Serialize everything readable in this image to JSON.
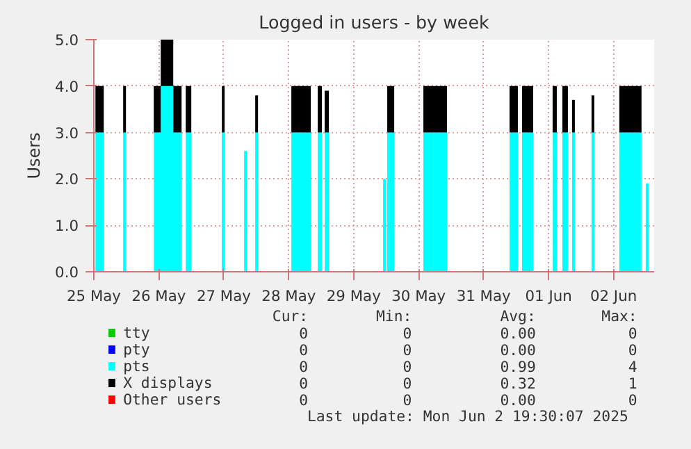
{
  "chart_data": {
    "type": "area",
    "stacked": true,
    "title": "Logged in users - by week",
    "ylabel": "Users",
    "x": [
      "2025-05-25T12:35",
      "2025-05-25T12:35",
      "2025-05-25T15:40",
      "2025-05-25T15:40",
      "2025-05-25T22:50",
      "2025-05-25T22:50",
      "2025-05-25T23:52",
      "2025-05-25T23:52",
      "2025-05-26T10:08",
      "2025-05-26T10:08",
      "2025-05-26T12:43",
      "2025-05-26T12:43",
      "2025-05-26T17:20",
      "2025-05-26T17:20",
      "2025-05-26T20:25",
      "2025-05-26T20:25",
      "2025-05-26T21:57",
      "2025-05-26T21:57",
      "2025-05-27T00:00",
      "2025-05-27T00:00",
      "2025-05-27T11:18",
      "2025-05-27T11:18",
      "2025-05-27T12:19",
      "2025-05-27T12:19",
      "2025-05-27T19:31",
      "2025-05-27T19:31",
      "2025-05-27T20:32",
      "2025-05-27T20:32",
      "2025-05-27T23:37",
      "2025-05-27T23:37",
      "2025-05-28T00:39",
      "2025-05-28T00:39",
      "2025-05-28T12:58",
      "2025-05-28T12:58",
      "2025-05-28T20:09",
      "2025-05-28T20:09",
      "2025-05-28T22:43",
      "2025-05-28T22:43",
      "2025-05-29T00:16",
      "2025-05-29T00:16",
      "2025-05-29T01:17",
      "2025-05-29T01:17",
      "2025-05-29T02:50",
      "2025-05-29T02:50",
      "2025-05-29T22:51",
      "2025-05-29T22:51",
      "2025-05-29T23:53",
      "2025-05-29T23:53",
      "2025-05-30T00:23",
      "2025-05-30T00:23",
      "2025-05-30T02:58",
      "2025-05-30T02:58",
      "2025-05-30T13:44",
      "2025-05-30T13:44",
      "2025-05-30T22:28",
      "2025-05-30T22:28",
      "2025-05-31T21:34",
      "2025-05-31T21:34",
      "2025-06-01T00:39",
      "2025-06-01T00:39",
      "2025-06-01T02:11",
      "2025-06-01T02:11",
      "2025-06-01T06:18",
      "2025-06-01T06:18",
      "2025-06-01T13:29",
      "2025-06-01T13:29",
      "2025-06-01T15:02",
      "2025-06-01T15:02",
      "2025-06-01T17:05",
      "2025-06-01T17:05",
      "2025-06-01T19:08",
      "2025-06-01T19:08",
      "2025-06-01T20:40",
      "2025-06-01T20:40",
      "2025-06-01T21:42",
      "2025-06-01T21:42",
      "2025-06-02T03:52",
      "2025-06-02T03:52",
      "2025-06-02T04:53",
      "2025-06-02T04:53",
      "2025-06-02T14:08",
      "2025-06-02T14:08",
      "2025-06-02T22:20",
      "2025-06-02T22:20",
      "2025-06-02T23:53",
      "2025-06-02T23:53",
      "2025-06-03T00:55",
      "2025-06-03T00:55"
    ],
    "series": [
      {
        "name": "tty",
        "color": "#00cc00",
        "values": [
          null,
          null,
          null,
          null,
          null,
          null,
          null,
          null,
          null,
          null,
          null,
          null,
          null,
          null,
          null,
          null,
          null,
          null,
          null,
          null,
          null,
          null,
          null,
          null,
          null,
          null,
          null,
          null,
          null,
          null,
          null,
          null,
          null,
          null,
          null,
          null,
          null,
          null,
          null,
          null,
          null,
          null,
          null,
          null,
          null,
          null,
          null,
          null,
          null,
          null,
          null,
          null,
          null,
          null,
          null,
          null,
          null,
          null,
          null,
          null,
          null,
          null,
          null,
          null,
          null,
          null,
          null,
          null,
          null,
          null,
          null,
          null,
          null,
          null,
          null,
          null,
          null,
          null,
          null,
          null,
          null,
          null,
          null,
          null,
          null,
          null,
          null,
          null
        ]
      },
      {
        "name": "pty",
        "color": "#0000ff",
        "values": [
          null,
          null,
          null,
          null,
          null,
          null,
          null,
          null,
          null,
          null,
          null,
          null,
          null,
          null,
          null,
          null,
          null,
          null,
          null,
          null,
          null,
          null,
          null,
          null,
          null,
          null,
          null,
          null,
          null,
          null,
          null,
          null,
          null,
          null,
          null,
          null,
          null,
          null,
          null,
          null,
          null,
          null,
          null,
          null,
          null,
          null,
          null,
          null,
          null,
          null,
          null,
          null,
          null,
          null,
          null,
          null,
          null,
          null,
          null,
          null,
          null,
          null,
          null,
          null,
          null,
          null,
          null,
          null,
          null,
          null,
          null,
          null,
          null,
          null,
          null,
          null,
          null,
          null,
          null,
          null,
          null,
          null,
          null,
          null,
          null,
          null,
          null,
          null
        ]
      },
      {
        "name": "pts",
        "color": "#00ffff",
        "values": [
          0,
          3,
          3,
          0,
          0,
          3,
          3,
          0,
          0,
          3,
          3,
          4,
          4,
          3,
          3,
          0,
          0,
          3,
          3,
          0,
          0,
          3,
          3,
          0,
          0,
          2.6,
          2.6,
          0,
          0,
          3,
          3,
          0,
          0,
          3,
          3,
          0,
          0,
          3,
          3,
          0,
          0,
          3,
          3,
          0,
          0,
          2,
          2,
          0,
          0,
          3,
          3,
          0,
          0,
          3,
          3,
          0,
          0,
          3,
          3,
          0,
          0,
          3,
          3,
          0,
          0,
          3,
          3,
          0,
          0,
          3,
          3,
          0,
          0,
          3,
          3,
          0,
          0,
          3,
          3,
          0,
          0,
          3,
          3,
          0,
          0,
          1.9,
          1.9,
          0
        ]
      },
      {
        "name": "X displays",
        "color": "#000000",
        "values": [
          0,
          1,
          1,
          0,
          0,
          1,
          1,
          0,
          0,
          1,
          1,
          1,
          1,
          1,
          1,
          0,
          0,
          1,
          1,
          0,
          0,
          1,
          1,
          0,
          0,
          0,
          0,
          0,
          0,
          0.8,
          0.8,
          0,
          0,
          1,
          1,
          0,
          0,
          1,
          1,
          0,
          0,
          0.9,
          0.9,
          0,
          0,
          0,
          0,
          0,
          0,
          1,
          1,
          0,
          0,
          1,
          1,
          0,
          0,
          1,
          1,
          0,
          0,
          1,
          1,
          0,
          0,
          1,
          1,
          0,
          0,
          1,
          1,
          0,
          0,
          0.7,
          0.7,
          0,
          0,
          0.8,
          0.8,
          0,
          0,
          1,
          1,
          0,
          0,
          0,
          0,
          0
        ]
      },
      {
        "name": "Other users",
        "color": "#ff0000",
        "values": [
          null,
          null,
          null,
          null,
          null,
          null,
          null,
          null,
          null,
          null,
          null,
          null,
          null,
          null,
          null,
          null,
          null,
          null,
          null,
          null,
          null,
          null,
          null,
          null,
          null,
          null,
          null,
          null,
          null,
          null,
          null,
          null,
          null,
          null,
          null,
          null,
          null,
          null,
          null,
          null,
          null,
          null,
          null,
          null,
          null,
          null,
          null,
          null,
          null,
          null,
          null,
          null,
          null,
          null,
          null,
          null,
          null,
          null,
          null,
          null,
          null,
          null,
          null,
          null,
          null,
          null,
          null,
          null,
          null,
          null,
          null,
          null,
          null,
          null,
          null,
          null,
          null,
          null,
          null,
          null,
          null,
          null,
          null,
          null,
          null,
          null,
          null,
          null
        ]
      }
    ],
    "xlim": [
      "2025-05-25T12:00",
      "2025-06-03T03:00"
    ],
    "xticks": [
      {
        "value": "2025-05-25T12:00",
        "label": "25 May"
      },
      {
        "value": "2025-05-26T12:00",
        "label": "26 May"
      },
      {
        "value": "2025-05-27T12:00",
        "label": "27 May"
      },
      {
        "value": "2025-05-28T12:00",
        "label": "28 May"
      },
      {
        "value": "2025-05-29T12:00",
        "label": "29 May"
      },
      {
        "value": "2025-05-30T12:00",
        "label": "30 May"
      },
      {
        "value": "2025-05-31T12:00",
        "label": "31 May"
      },
      {
        "value": "2025-06-01T12:00",
        "label": "01 Jun"
      },
      {
        "value": "2025-06-02T12:00",
        "label": "02 Jun"
      }
    ],
    "ylim": [
      0,
      5
    ],
    "yticks": [
      {
        "value": 0,
        "label": "0.0"
      },
      {
        "value": 1,
        "label": "1.0"
      },
      {
        "value": 2,
        "label": "2.0"
      },
      {
        "value": 3,
        "label": "3.0"
      },
      {
        "value": 4,
        "label": "4.0"
      },
      {
        "value": 5,
        "label": "5.0"
      }
    ],
    "grid": true,
    "legend": "bottom",
    "annotations": [
      "Cur:",
      "Min:",
      "Avg:",
      "Max:",
      "0",
      "0",
      "0.00",
      "0",
      "0",
      "0",
      "0.00",
      "0",
      "0",
      "0",
      "0.99",
      "4",
      "0",
      "0",
      "0.32",
      "1",
      "0",
      "0",
      "0.00",
      "0",
      "Last update: Mon Jun  2 19:30:07 2025"
    ]
  }
}
